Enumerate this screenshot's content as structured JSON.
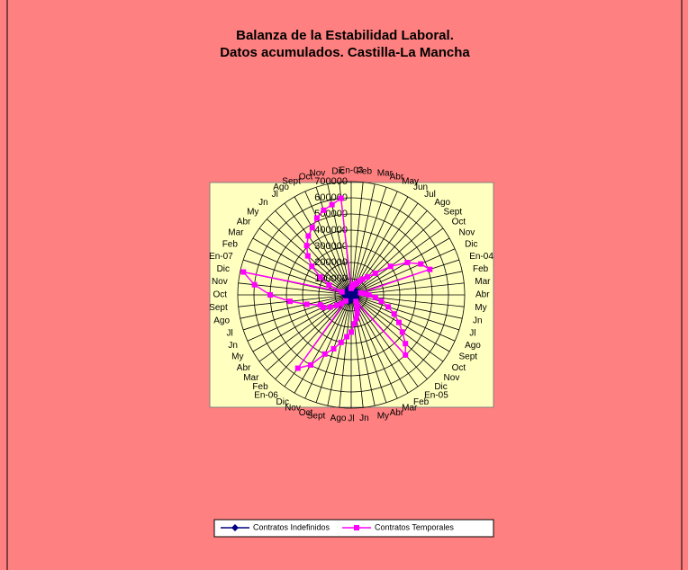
{
  "chart_data": {
    "type": "radar",
    "title": [
      "Balanza de la Estabilidad Laboral.",
      "Datos acumulados. Castilla-La Mancha"
    ],
    "categories": [
      "En-03",
      "Feb",
      "Mar",
      "Abr",
      "May",
      "Jun",
      "Jul",
      "Ago",
      "Sept",
      "Oct",
      "Nov",
      "Dic",
      "En-04",
      "Feb",
      "Mar",
      "Abr",
      "My",
      "Jn",
      "Jl",
      "Ago",
      "Sept",
      "Oct",
      "Nov",
      "Dic",
      "En-05",
      "Feb",
      "Mar",
      "Abr",
      "My",
      "Jn",
      "Jl",
      "Ago",
      "Sept",
      "Oct",
      "Nov",
      "Dic",
      "En-06",
      "Feb",
      "Mar",
      "Abr",
      "My",
      "Jn",
      "Jl",
      "Ago",
      "Sept",
      "Oct",
      "Nov",
      "Dic",
      "En-07",
      "Feb",
      "Mar",
      "Abr",
      "My",
      "Jn",
      "Jl",
      "Ago",
      "Sept",
      "Oct",
      "Nov",
      "Dic"
    ],
    "series": [
      {
        "name": "Contratos Indefinidos",
        "color": "#000080",
        "marker": "diamond",
        "values": [
          5000,
          9000,
          13000,
          17000,
          20000,
          23000,
          26000,
          28000,
          31000,
          34000,
          37000,
          40000,
          6000,
          10000,
          14000,
          18000,
          21000,
          24000,
          27000,
          30000,
          33000,
          36000,
          39000,
          42000,
          6000,
          11000,
          15000,
          19000,
          23000,
          26000,
          29000,
          32000,
          35000,
          38000,
          41000,
          44000,
          7000,
          12000,
          16000,
          20000,
          24000,
          28000,
          31000,
          34000,
          37000,
          40000,
          43000,
          46000,
          7000,
          12000,
          17000,
          21000,
          25000,
          29000,
          32000,
          35000,
          38000,
          41000,
          44000,
          47000
        ]
      },
      {
        "name": "Contratos Temporales",
        "color": "#ff00ff",
        "marker": "square",
        "values": [
          40000,
          50000,
          60000,
          70000,
          80000,
          100000,
          120000,
          150000,
          200000,
          300000,
          400000,
          470000,
          510000,
          60000,
          80000,
          110000,
          150000,
          190000,
          240000,
          290000,
          340000,
          390000,
          450000,
          500000,
          50000,
          70000,
          90000,
          120000,
          150000,
          180000,
          230000,
          260000,
          300000,
          350000,
          400000,
          500000,
          560000,
          50000,
          80000,
          110000,
          150000,
          190000,
          200000,
          280000,
          380000,
          500000,
          600000,
          680000,
          60000,
          150000,
          220000,
          300000,
          360000,
          410000,
          450000,
          480000,
          520000,
          550000,
          570000,
          600000
        ]
      }
    ],
    "ylim": [
      0,
      700000
    ],
    "yticks": [
      0,
      100000,
      200000,
      300000,
      400000,
      500000,
      600000,
      700000
    ],
    "grid": true
  }
}
